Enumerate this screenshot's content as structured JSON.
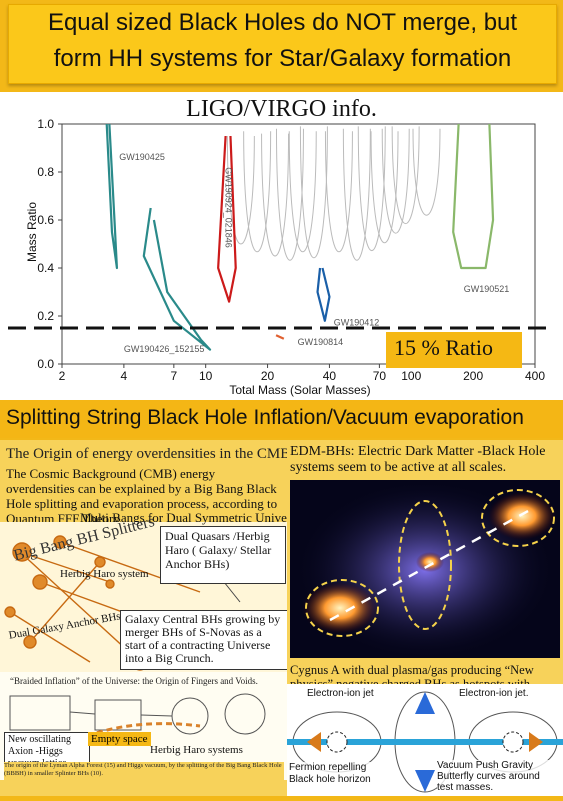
{
  "title": {
    "line1": "Equal sized Black Holes do NOT merge, but",
    "line2": "form HH systems for Star/Galaxy formation"
  },
  "chart_heading": "LIGO/VIRGO info.",
  "chart_data": {
    "type": "line",
    "xlabel": "Total Mass (Solar Masses)",
    "ylabel": "Mass Ratio",
    "x_scale": "log",
    "xlim": [
      2,
      400
    ],
    "ylim": [
      0,
      1.0
    ],
    "x_ticks": [
      "2",
      "4",
      "7",
      "10",
      "20",
      "40",
      "70",
      "100",
      "200",
      "400"
    ],
    "y_ticks": [
      "0.0",
      "0.2",
      "0.4",
      "0.6",
      "0.8",
      "1.0"
    ],
    "annotation": "15 % Ratio",
    "threshold_y": 0.15,
    "series": [
      {
        "name": "GW190425",
        "color": "#2a8a8a"
      },
      {
        "name": "GW190426_152155",
        "color": "#2a8a8a"
      },
      {
        "name": "GW190924_021846",
        "color": "#cc1a1a"
      },
      {
        "name": "GW190814",
        "color": "#e06030"
      },
      {
        "name": "GW190412",
        "color": "#1a5fa8"
      },
      {
        "name": "GW190521",
        "color": "#8ab86a"
      }
    ]
  },
  "section_title": "Splitting String Black Hole Inflation/Vacuum evaporation",
  "left": {
    "heading": "The Origin of energy overdensities in the CMB",
    "paragraph": "The Cosmic Background (CMB) energy overdensities can be explained by a Big Bang Black Hole splitting and evaporation process, according to Quantum FFF Theory.",
    "multi_bang": "Multi Bangs for Dual Symmetric Universes",
    "big_bang_label": "Big Bang BH Splitters",
    "herbig_label": "Herbig Haro system",
    "dual_galaxy_label": "Dual Galaxy Anchor BHs",
    "dual_quasars": "Dual Quasars /Herbig Haro ( Galaxy/ Stellar Anchor BHs)",
    "galaxy_central": "Galaxy Central BHs growing by merger BHs of S-Novas as a start of a contracting Universe into a Big Crunch.",
    "braided": "“Braided Inflation” of the Universe: the Origin of Fingers and Voids.",
    "axion": "New oscillating Axion -Higgs vacuum lattice",
    "empty_space": "Empty space",
    "herbig_systems": "Herbig Haro systems",
    "footer": "The origin of the Lyman Alpha Forest (15) and Higgs vacuum, by the splitting of the Big Bang Black Hole (BBBH) in smaller Splinter BHs (10)."
  },
  "right": {
    "heading": "EDM-BHs: Electric Dark Matter -Black Hole systems seem to be active at all scales.",
    "cygnus": "Cygnus A with dual plasma/gas producing “New physics” negative charged BHs as hotspots,with growing merger (SN) black hole in the center.  Below: local Quantum vacuum push gravity vector butterflies originated by the BH vacuum absorption of dark vacuum energy.",
    "jet_left": "Electron-ion jet",
    "jet_right": "Electron-ion jet.",
    "fermion": "Fermion repelling Black hole horizon",
    "vacuum_push": "Vacuum Push Gravity Butterfly curves around test masses."
  }
}
